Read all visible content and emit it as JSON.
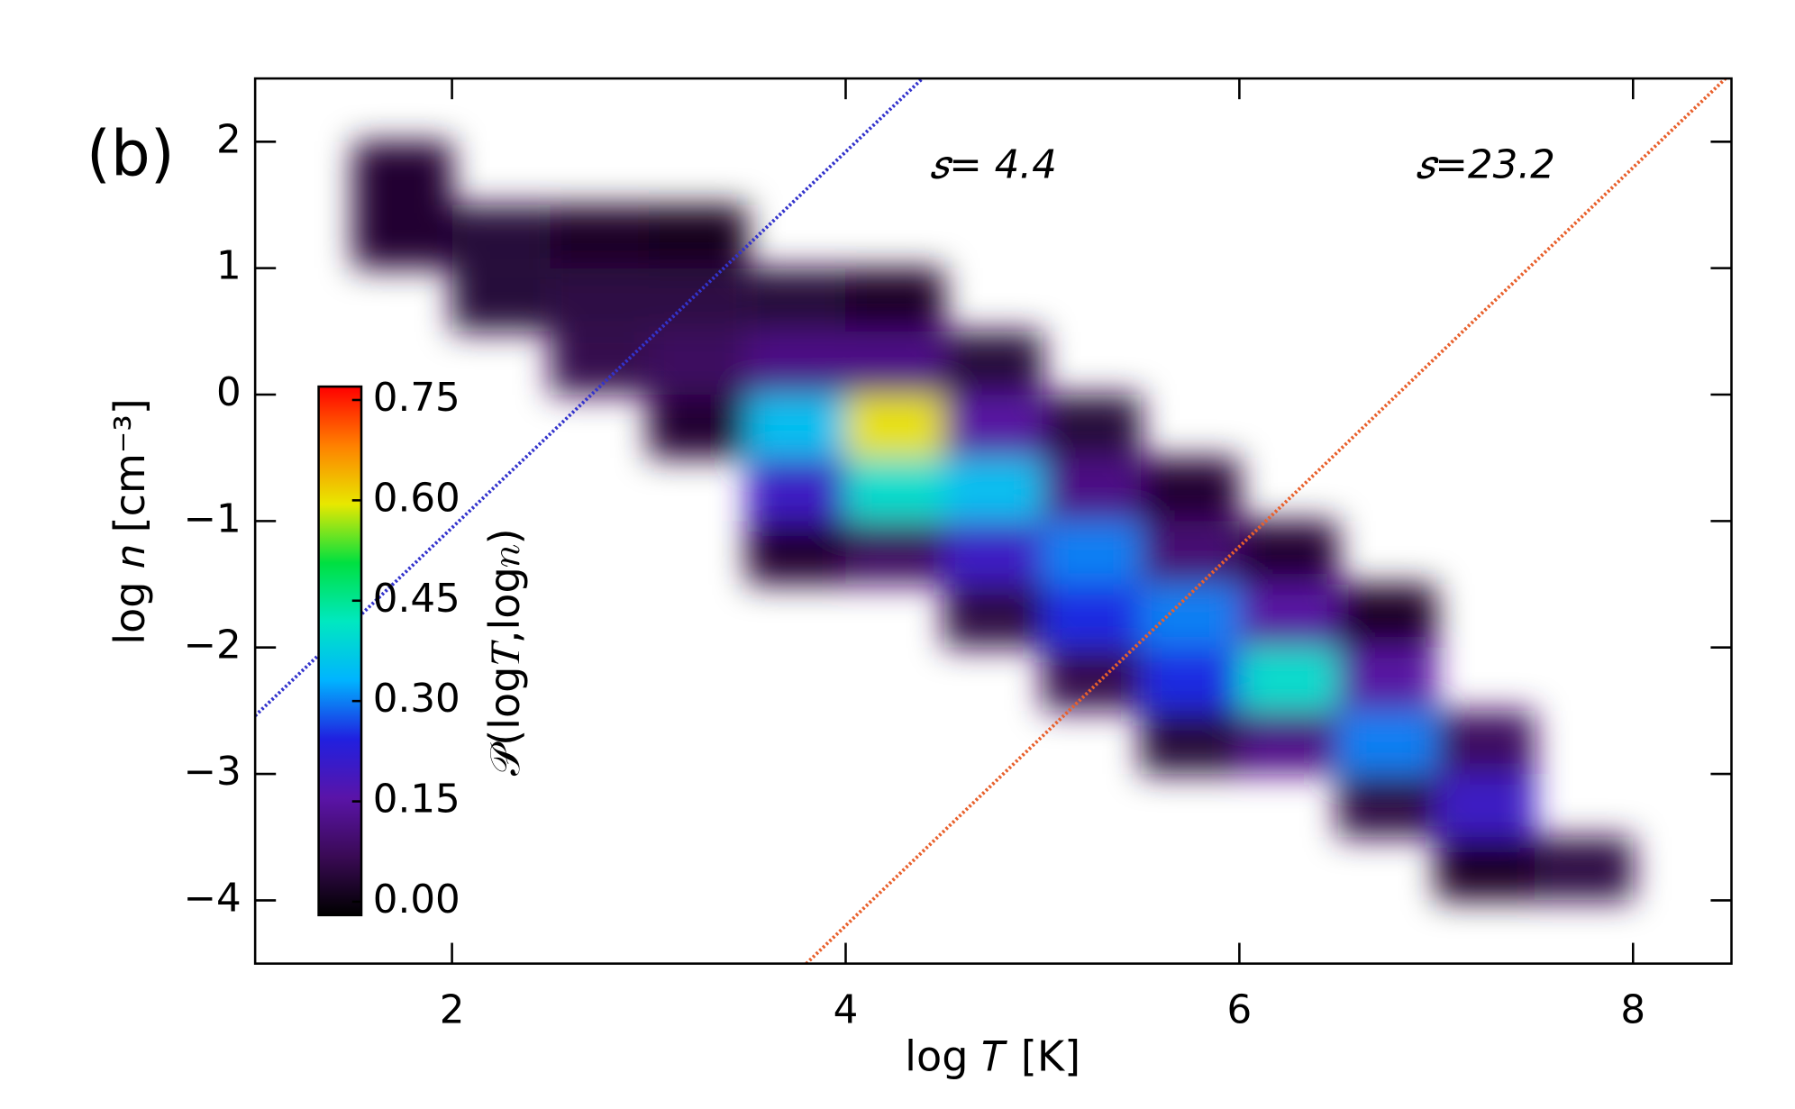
{
  "chart_data": {
    "type": "heatmap",
    "panel_label": "(b)",
    "x_label": "log 𝑇 [K]",
    "y_label": "log 𝑛 [cm⁻³]",
    "colorbar_label": "𝒫(log𝑇,log𝑛)",
    "xlim": [
      1.0,
      8.5
    ],
    "ylim": [
      -4.5,
      2.5
    ],
    "xticks": [
      2,
      4,
      6,
      8
    ],
    "yticks": [
      {
        "value": -4,
        "label": "−4"
      },
      {
        "value": -3,
        "label": "−3"
      },
      {
        "value": -2,
        "label": "−2"
      },
      {
        "value": -1,
        "label": "−1"
      },
      0,
      1,
      2
    ],
    "clim": [
      -0.02,
      0.77
    ],
    "cticks": [
      {
        "value": 0,
        "label": "0.00"
      },
      {
        "value": 0.15,
        "label": "0.15"
      },
      {
        "value": 0.3,
        "label": "0.30"
      },
      {
        "value": 0.45,
        "label": "0.45"
      },
      {
        "value": 0.6,
        "label": "0.60"
      },
      {
        "value": 0.75,
        "label": "0.75"
      }
    ],
    "colormap": [
      "#000000",
      "#3a0a55",
      "#5a14a8",
      "#2020e0",
      "#00b4ff",
      "#00e8c0",
      "#00e040",
      "#e8e800",
      "#ff8000",
      "#ff0000"
    ],
    "xbins": [
      1.5,
      2.0,
      2.5,
      3.0,
      3.5,
      4.0,
      4.5,
      5.0,
      5.5,
      6.0,
      6.5,
      7.0,
      7.5,
      8.0
    ],
    "ybins": [
      -4.0,
      -3.5,
      -3.0,
      -2.5,
      -2.0,
      -1.5,
      -1.0,
      -0.5,
      0.0,
      0.5,
      1.0,
      1.5,
      2.0
    ],
    "z": [
      [
        null,
        null,
        null,
        null,
        null,
        null,
        null,
        null,
        null,
        null,
        null,
        0.02,
        0.05
      ],
      [
        null,
        null,
        null,
        null,
        null,
        null,
        null,
        null,
        null,
        null,
        0.05,
        0.2,
        null
      ],
      [
        null,
        null,
        null,
        null,
        null,
        null,
        null,
        null,
        0.04,
        0.12,
        0.3,
        0.08,
        null
      ],
      [
        null,
        null,
        null,
        null,
        null,
        null,
        null,
        0.06,
        0.25,
        0.4,
        0.15,
        null,
        null
      ],
      [
        null,
        null,
        null,
        null,
        null,
        null,
        0.05,
        0.25,
        0.3,
        0.15,
        0.02,
        null,
        null
      ],
      [
        null,
        null,
        null,
        null,
        0.03,
        0.08,
        0.2,
        0.3,
        0.1,
        0.03,
        null,
        null,
        null
      ],
      [
        null,
        null,
        null,
        null,
        0.2,
        0.4,
        0.35,
        0.12,
        0.03,
        null,
        null,
        null,
        null
      ],
      [
        null,
        null,
        null,
        0.03,
        0.35,
        0.6,
        0.15,
        0.04,
        null,
        null,
        null,
        null,
        null
      ],
      [
        null,
        null,
        0.06,
        0.08,
        0.12,
        0.12,
        0.04,
        null,
        null,
        null,
        null,
        null,
        null
      ],
      [
        null,
        0.04,
        0.05,
        0.05,
        0.04,
        0.02,
        null,
        null,
        null,
        null,
        null,
        null,
        null
      ],
      [
        0.03,
        0.04,
        0.02,
        0.01,
        null,
        null,
        null,
        null,
        null,
        null,
        null,
        null,
        null
      ],
      [
        0.03,
        null,
        null,
        null,
        null,
        null,
        null,
        null,
        null,
        null,
        null,
        null,
        null
      ]
    ],
    "lines": [
      {
        "color": "#3333cc",
        "x": [
          1.0,
          4.39
        ],
        "y": [
          -2.54,
          2.5
        ]
      },
      {
        "color": "#e8602c",
        "x": [
          3.8,
          8.47
        ],
        "y": [
          -4.5,
          2.5
        ]
      }
    ],
    "annotations": [
      {
        "text": "𝑠= 4.4",
        "x": 4.75,
        "y": 1.8
      },
      {
        "text": "𝑠=23.2",
        "x": 7.25,
        "y": 1.8
      }
    ]
  }
}
